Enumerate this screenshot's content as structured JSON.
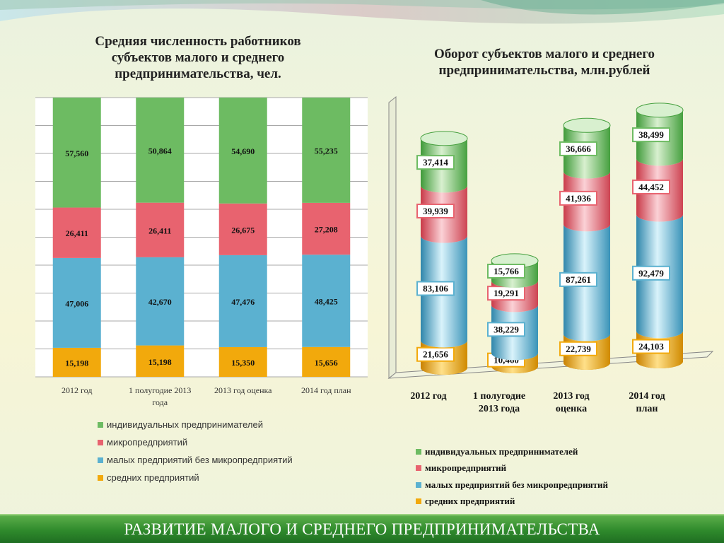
{
  "footer_title": "РАЗВИТИЕ МАЛОГО И СРЕДНЕГО ПРЕДПРИНИМАТЕЛЬСТВА",
  "colors": {
    "individual": "#6dbb62",
    "micro": "#e8636f",
    "small": "#5bb1d0",
    "medium": "#f2a90c"
  },
  "chart_data": [
    {
      "type": "bar",
      "stacked": true,
      "title": "Средняя численность работников субъектов малого и среднего предпринимательства, чел.",
      "categories": [
        "2012 год",
        "1 полугодие 2013 года",
        "2013 год оценка",
        "2014 год план"
      ],
      "series": [
        {
          "name": "средних предприятий",
          "values": [
            15198,
            15198,
            15350,
            15656
          ],
          "labels": [
            "15,198",
            "15,198",
            "15,350",
            "15,656"
          ],
          "color": "#f2a90c"
        },
        {
          "name": "малых предприятий без микропредприятий",
          "values": [
            47006,
            42670,
            47476,
            48425
          ],
          "labels": [
            "47,006",
            "42,670",
            "47,476",
            "48,425"
          ],
          "color": "#5bb1d0"
        },
        {
          "name": "микропредприятий",
          "values": [
            26411,
            26411,
            26675,
            27208
          ],
          "labels": [
            "26,411",
            "26,411",
            "26,675",
            "27,208"
          ],
          "color": "#e8636f"
        },
        {
          "name": "индивидуальных предпринимателей",
          "values": [
            57560,
            50864,
            54690,
            55235
          ],
          "labels": [
            "57,560",
            "50,864",
            "54,690",
            "55,235"
          ],
          "color": "#6dbb62"
        }
      ],
      "normalized": true,
      "ylim": [
        0,
        1
      ],
      "grid": true,
      "legend": "bottom"
    },
    {
      "type": "bar",
      "stacked": true,
      "style": "3d-cylinder",
      "title": "Оборот субъектов малого и среднего предпринимательства, млн.рублей",
      "categories": [
        "2012 год",
        "1 полугодие 2013 года",
        "2013 год оценка",
        "2014 год план"
      ],
      "series": [
        {
          "name": "средних предприятий",
          "values": [
            21656,
            10460,
            22739,
            24103
          ],
          "labels": [
            "21,656",
            "10,460",
            "22,739",
            "24,103"
          ],
          "color": "#f2a90c"
        },
        {
          "name": "малых предприятий без микропредприятий",
          "values": [
            83106,
            38229,
            87261,
            92479
          ],
          "labels": [
            "83,106",
            "38,229",
            "87,261",
            "92,479"
          ],
          "color": "#5bb1d0"
        },
        {
          "name": "микропредприятий",
          "values": [
            39939,
            19291,
            41936,
            44452
          ],
          "labels": [
            "39,939",
            "19,291",
            "41,936",
            "44,452"
          ],
          "color": "#e8636f"
        },
        {
          "name": "индивидуальных предпринимателей",
          "values": [
            37414,
            15766,
            36666,
            38499
          ],
          "labels": [
            "37,414",
            "15,766",
            "36,666",
            "38,499"
          ],
          "color": "#6dbb62"
        }
      ],
      "legend": "bottom"
    }
  ],
  "left_tick_labels": [
    [
      "2012 год"
    ],
    [
      "1  полугодие  2013",
      "года"
    ],
    [
      "2013 год оценка"
    ],
    [
      "2014 год план"
    ]
  ],
  "right_tick_labels": [
    [
      "2012 год"
    ],
    [
      "1  полугодие",
      "2013 года"
    ],
    [
      "2013 год",
      "оценка"
    ],
    [
      "2014 год",
      "план"
    ]
  ],
  "legend_order": [
    {
      "label": "индивидуальных предпринимателей",
      "color": "#6dbb62"
    },
    {
      "label": "микропредприятий",
      "color": "#e8636f"
    },
    {
      "label": "малых предприятий без микропредприятий",
      "color": "#5bb1d0"
    },
    {
      "label": "средних предприятий",
      "color": "#f2a90c"
    }
  ]
}
